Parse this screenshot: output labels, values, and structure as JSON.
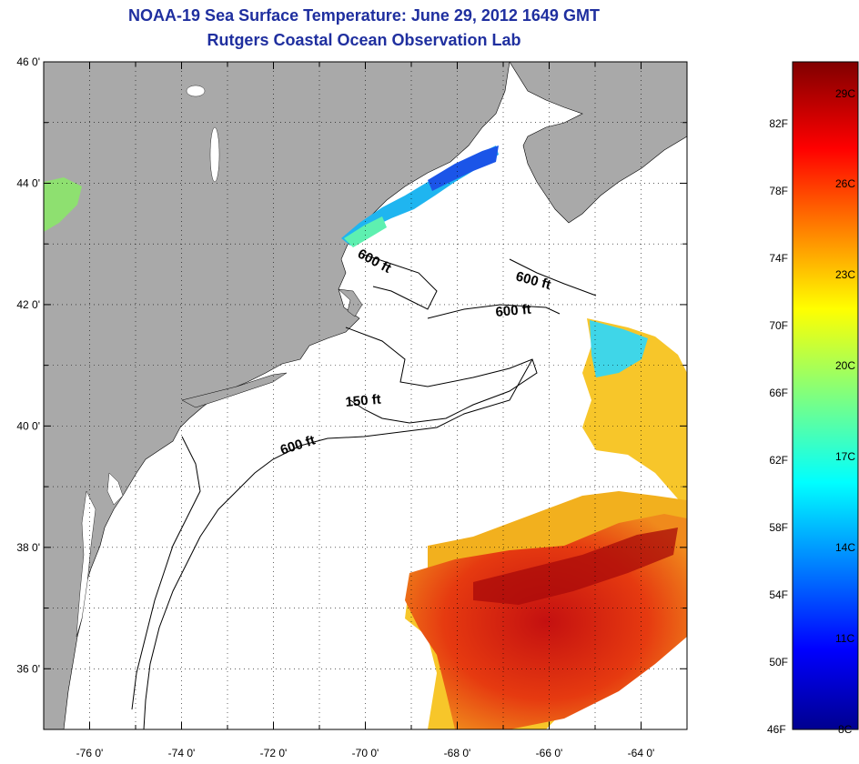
{
  "title": "NOAA-19 Sea Surface Temperature:  June 29, 2012 1649 GMT",
  "subtitle": "Rutgers Coastal Ocean Observation Lab",
  "lat_labels": [
    {
      "lat": 46,
      "text": "46 0'"
    },
    {
      "lat": 44,
      "text": "44 0'"
    },
    {
      "lat": 42,
      "text": "42 0'"
    },
    {
      "lat": 40,
      "text": "40 0'"
    },
    {
      "lat": 38,
      "text": "38 0'"
    },
    {
      "lat": 36,
      "text": "36 0'"
    }
  ],
  "lon_labels": [
    {
      "lon": -76,
      "text": "-76 0'"
    },
    {
      "lon": -74,
      "text": "-74 0'"
    },
    {
      "lon": -72,
      "text": "-72 0'"
    },
    {
      "lon": -70,
      "text": "-70 0'"
    },
    {
      "lon": -68,
      "text": "-68 0'"
    },
    {
      "lon": -66,
      "text": "-66 0'"
    },
    {
      "lon": -64,
      "text": "-64 0'"
    }
  ],
  "contour_labels": [
    "600 ft",
    "600 ft",
    "600 ft",
    "150 ft",
    "600 ft"
  ],
  "colorbar": {
    "min_label_f": "46F",
    "min_label_c": "8C",
    "fahrenheit": [
      "82F",
      "78F",
      "74F",
      "70F",
      "66F",
      "62F",
      "58F",
      "54F",
      "50F"
    ],
    "celsius": [
      "29C",
      "26C",
      "23C",
      "20C",
      "17C",
      "14C",
      "11C"
    ]
  }
}
